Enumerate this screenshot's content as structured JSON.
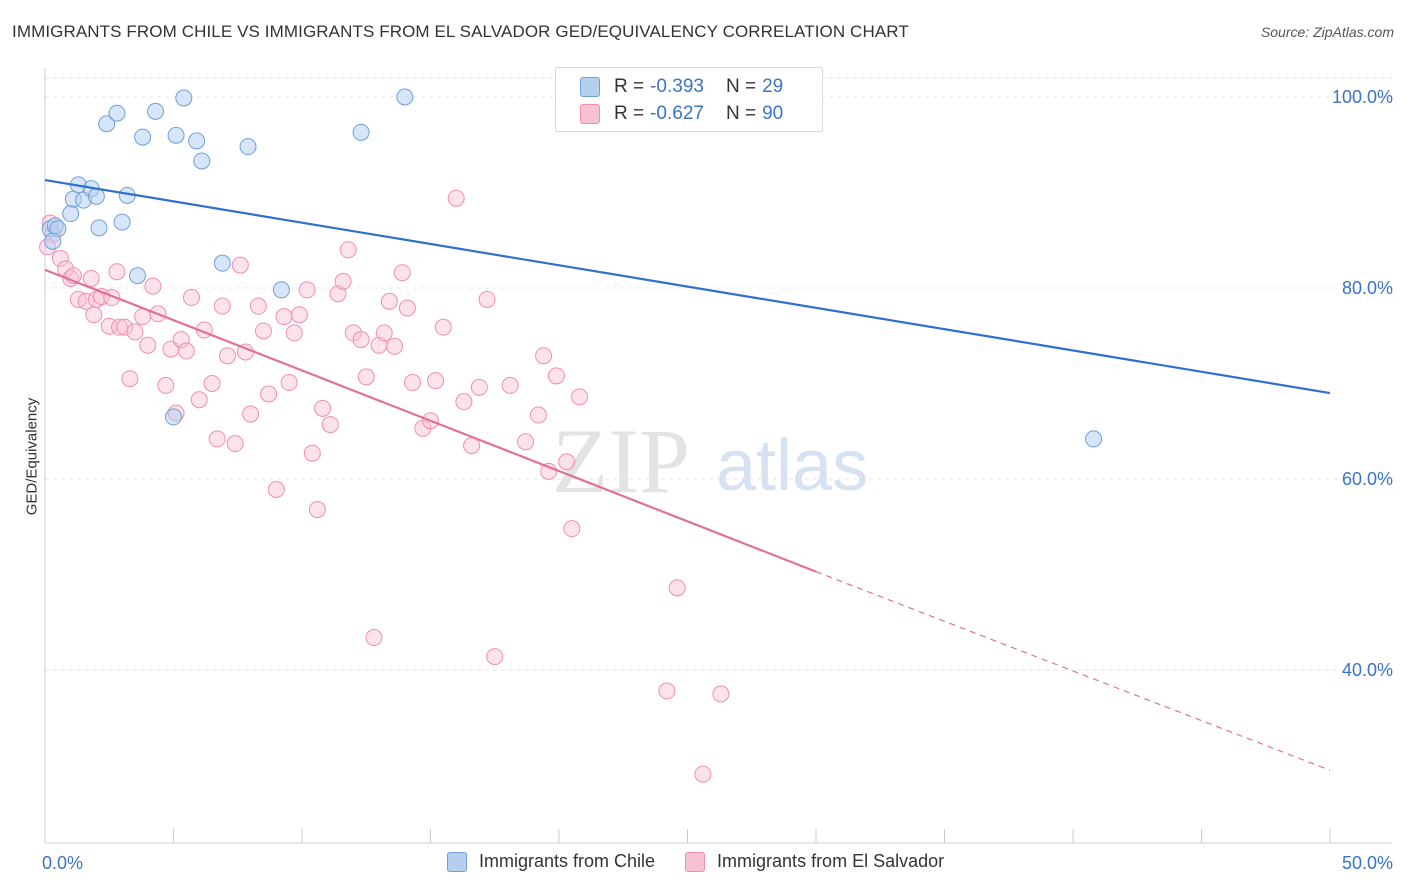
{
  "title": "IMMIGRANTS FROM CHILE VS IMMIGRANTS FROM EL SALVADOR GED/EQUIVALENCY CORRELATION CHART",
  "source": "Source: ZipAtlas.com",
  "legend": {
    "r_label": "R =",
    "n_label": "N =",
    "rows": [
      {
        "r": "-0.393",
        "n": "29"
      },
      {
        "r": "-0.627",
        "n": "90"
      }
    ]
  },
  "watermark": {
    "zip": "ZIP",
    "atlas": "atlas"
  },
  "chart_data": {
    "type": "scatter",
    "title": "IMMIGRANTS FROM CHILE VS IMMIGRANTS FROM EL SALVADOR GED/EQUIVALENCY CORRELATION CHART",
    "xlabel": "",
    "ylabel": "GED/Equivalency",
    "xlim": [
      0,
      50
    ],
    "ylim": [
      22,
      104
    ],
    "x_tick_labels": [
      "0.0%",
      "50.0%"
    ],
    "y_ticks": [
      40,
      60,
      80,
      100
    ],
    "y_tick_labels": [
      "40.0%",
      "60.0%",
      "80.0%",
      "100.0%"
    ],
    "grid": true,
    "legend_position": "top-center",
    "colors": {
      "chile": "#6f9fdc",
      "salvador": "#f28db0",
      "chile_line": "#2f6fd0",
      "salvador_line": "#e0709a"
    },
    "series": [
      {
        "name": "Immigrants from Chile",
        "r": -0.393,
        "n": 29,
        "trend": {
          "x": [
            0.0,
            50.0
          ],
          "y": [
            91.3,
            69.0
          ]
        },
        "points": [
          [
            0.2,
            86.2
          ],
          [
            0.4,
            86.5
          ],
          [
            0.5,
            86.2
          ],
          [
            1.0,
            87.8
          ],
          [
            1.1,
            89.3
          ],
          [
            1.3,
            90.8
          ],
          [
            1.5,
            89.2
          ],
          [
            1.8,
            90.4
          ],
          [
            2.0,
            89.6
          ],
          [
            2.1,
            86.3
          ],
          [
            2.4,
            97.2
          ],
          [
            2.8,
            98.3
          ],
          [
            3.0,
            86.9
          ],
          [
            3.2,
            89.7
          ],
          [
            3.6,
            81.3
          ],
          [
            3.8,
            95.8
          ],
          [
            4.3,
            98.5
          ],
          [
            5.0,
            66.5
          ],
          [
            5.1,
            96.0
          ],
          [
            5.4,
            99.9
          ],
          [
            5.9,
            95.4
          ],
          [
            6.1,
            93.3
          ],
          [
            6.9,
            82.6
          ],
          [
            7.9,
            94.8
          ],
          [
            9.2,
            79.8
          ],
          [
            12.3,
            96.3
          ],
          [
            14.0,
            100.0
          ],
          [
            40.8,
            64.2
          ],
          [
            0.3,
            84.9
          ]
        ]
      },
      {
        "name": "Immigrants from El Salvador",
        "r": -0.627,
        "n": 90,
        "trend": {
          "x": [
            0.0,
            30.0
          ],
          "y": [
            81.9,
            50.3
          ]
        },
        "trend_dashed": {
          "x": [
            30.0,
            50.0
          ],
          "y": [
            50.3,
            29.5
          ]
        },
        "points": [
          [
            0.2,
            86.8
          ],
          [
            0.3,
            85.6
          ],
          [
            0.6,
            83.1
          ],
          [
            0.8,
            82.0
          ],
          [
            1.0,
            81.0
          ],
          [
            1.1,
            81.3
          ],
          [
            1.3,
            78.8
          ],
          [
            1.6,
            78.6
          ],
          [
            1.9,
            77.2
          ],
          [
            2.0,
            78.8
          ],
          [
            2.2,
            79.1
          ],
          [
            2.5,
            76.0
          ],
          [
            2.8,
            81.7
          ],
          [
            2.9,
            75.9
          ],
          [
            3.1,
            75.9
          ],
          [
            3.3,
            70.5
          ],
          [
            3.5,
            75.4
          ],
          [
            3.8,
            77.0
          ],
          [
            4.0,
            74.0
          ],
          [
            4.2,
            80.2
          ],
          [
            4.4,
            77.3
          ],
          [
            4.7,
            69.8
          ],
          [
            4.9,
            73.6
          ],
          [
            5.1,
            66.9
          ],
          [
            5.3,
            74.6
          ],
          [
            5.5,
            73.4
          ],
          [
            5.7,
            79.0
          ],
          [
            6.0,
            68.3
          ],
          [
            6.2,
            75.6
          ],
          [
            6.5,
            70.0
          ],
          [
            6.7,
            64.2
          ],
          [
            6.9,
            78.1
          ],
          [
            7.1,
            72.9
          ],
          [
            7.4,
            63.7
          ],
          [
            7.6,
            82.4
          ],
          [
            7.8,
            73.3
          ],
          [
            8.0,
            66.8
          ],
          [
            8.3,
            78.1
          ],
          [
            8.5,
            75.5
          ],
          [
            8.7,
            68.9
          ],
          [
            9.0,
            58.9
          ],
          [
            9.3,
            77.0
          ],
          [
            9.5,
            70.1
          ],
          [
            9.7,
            75.3
          ],
          [
            9.9,
            77.2
          ],
          [
            10.2,
            79.8
          ],
          [
            10.4,
            62.7
          ],
          [
            10.6,
            56.8
          ],
          [
            10.8,
            67.4
          ],
          [
            11.1,
            65.7
          ],
          [
            11.4,
            79.4
          ],
          [
            11.6,
            80.7
          ],
          [
            11.8,
            84.0
          ],
          [
            12.0,
            75.3
          ],
          [
            12.3,
            74.6
          ],
          [
            12.5,
            70.7
          ],
          [
            12.8,
            43.4
          ],
          [
            13.0,
            74.0
          ],
          [
            13.2,
            75.3
          ],
          [
            13.4,
            78.6
          ],
          [
            13.6,
            73.9
          ],
          [
            13.9,
            81.6
          ],
          [
            14.1,
            77.9
          ],
          [
            14.3,
            70.1
          ],
          [
            14.7,
            65.3
          ],
          [
            15.0,
            66.1
          ],
          [
            15.2,
            70.3
          ],
          [
            15.5,
            75.9
          ],
          [
            16.0,
            89.4
          ],
          [
            16.3,
            68.1
          ],
          [
            16.6,
            63.5
          ],
          [
            16.9,
            69.6
          ],
          [
            17.2,
            78.8
          ],
          [
            17.5,
            41.4
          ],
          [
            18.1,
            69.8
          ],
          [
            18.7,
            63.9
          ],
          [
            19.2,
            66.7
          ],
          [
            19.4,
            72.9
          ],
          [
            19.6,
            60.8
          ],
          [
            19.9,
            70.8
          ],
          [
            20.3,
            61.8
          ],
          [
            20.5,
            54.8
          ],
          [
            20.8,
            68.6
          ],
          [
            24.2,
            37.8
          ],
          [
            24.6,
            48.6
          ],
          [
            25.6,
            29.1
          ],
          [
            26.3,
            37.5
          ],
          [
            0.1,
            84.3
          ],
          [
            1.8,
            81.0
          ],
          [
            2.6,
            79.0
          ]
        ]
      }
    ]
  },
  "bottom_legend": [
    {
      "label": "Immigrants from Chile"
    },
    {
      "label": "Immigrants from El Salvador"
    }
  ]
}
